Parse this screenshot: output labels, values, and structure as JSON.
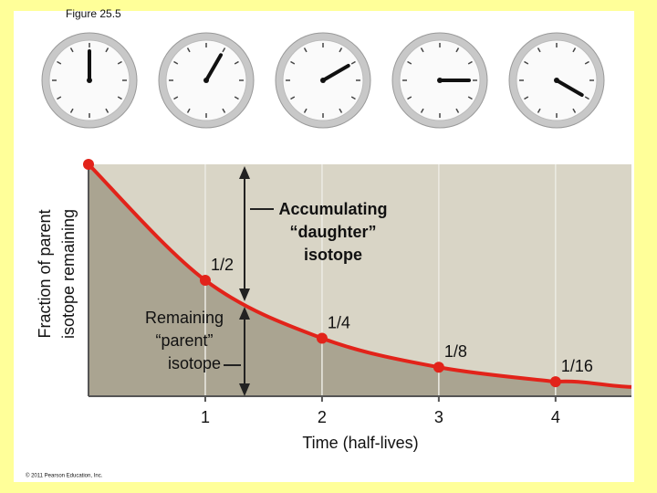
{
  "chart_data": {
    "type": "line",
    "figure_label": "Figure 25.5",
    "x_label": "Time (half-lives)",
    "y_label": [
      "Fraction of parent",
      "isotope remaining"
    ],
    "annotations": [
      {
        "lines": [
          "Accumulating",
          "“daughter”",
          "isotope"
        ]
      },
      {
        "lines": [
          "Remaining",
          "“parent”",
          "isotope"
        ]
      }
    ],
    "copyright": "© 2011 Pearson Education, Inc.",
    "x": [
      0,
      1,
      2,
      3,
      4
    ],
    "series": [
      {
        "name": "Parent isotope",
        "color": "#e2231a",
        "values": [
          1,
          0.5,
          0.25,
          0.125,
          0.0625
        ],
        "value_labels": [
          null,
          "1/2",
          "1/4",
          "1/8",
          "1/16"
        ]
      }
    ],
    "xlim": [
      0,
      4.65
    ],
    "ylim": [
      0,
      1
    ],
    "xticks": [
      1,
      2,
      3,
      4
    ],
    "grid": true
  }
}
